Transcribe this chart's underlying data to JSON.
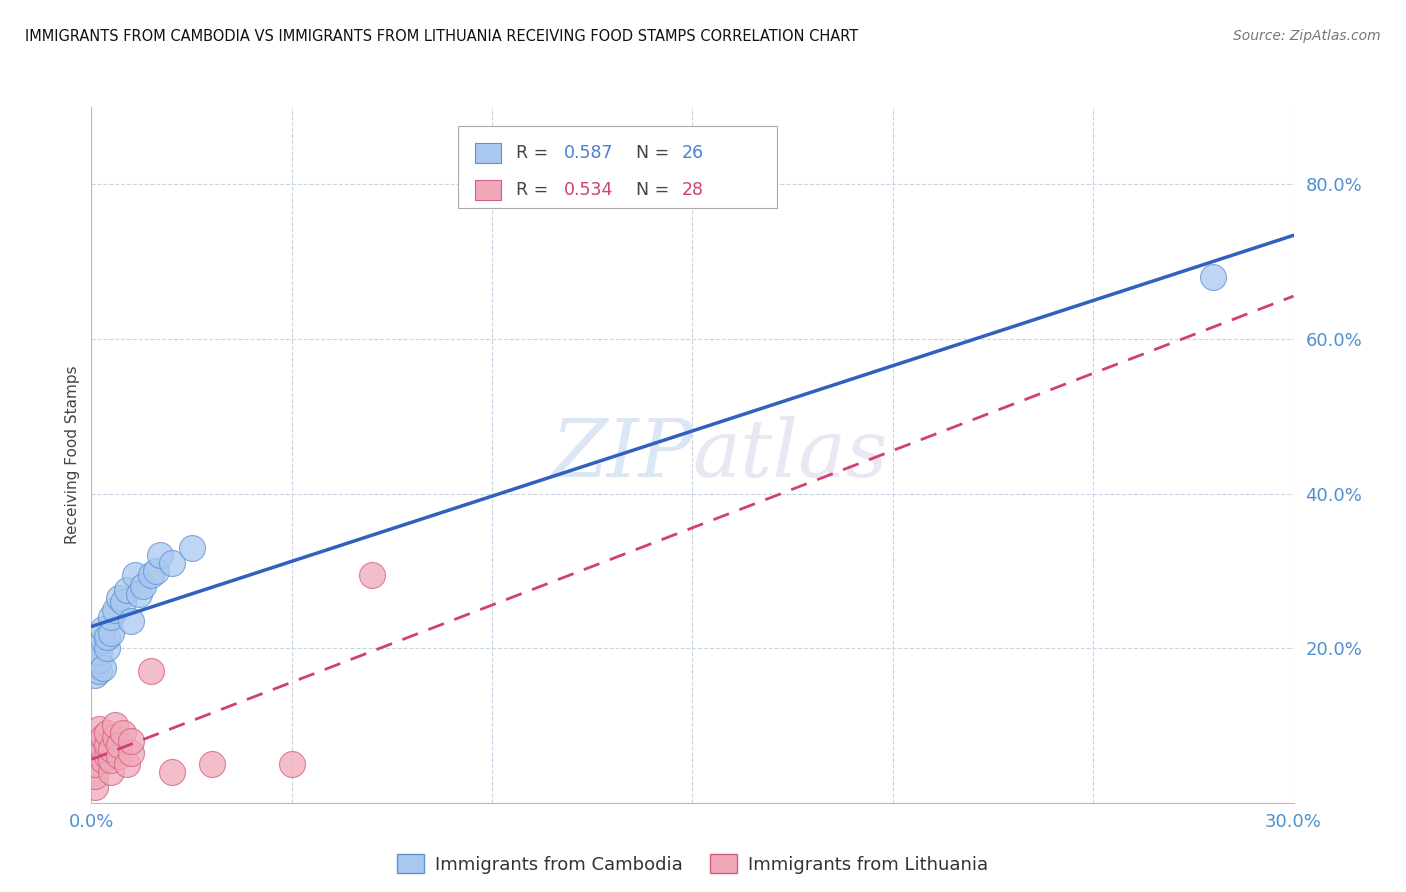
{
  "title": "IMMIGRANTS FROM CAMBODIA VS IMMIGRANTS FROM LITHUANIA RECEIVING FOOD STAMPS CORRELATION CHART",
  "source": "Source: ZipAtlas.com",
  "ylabel": "Receiving Food Stamps",
  "xlim": [
    0.0,
    0.3
  ],
  "ylim": [
    0.0,
    0.9
  ],
  "ytick_values": [
    0.0,
    0.2,
    0.4,
    0.6,
    0.8
  ],
  "xtick_values": [
    0.0,
    0.05,
    0.1,
    0.15,
    0.2,
    0.25,
    0.3
  ],
  "cambodia_fill": "#a8c8f0",
  "cambodia_edge": "#6090d0",
  "lithuania_fill": "#f0a8b8",
  "lithuania_edge": "#d06080",
  "cambodia_line_color": "#3060c0",
  "lithuania_line_color": "#d04070",
  "yaxis_color": "#5090d0",
  "xaxis_color": "#5090d0",
  "legend_r_cam_val": "0.587",
  "legend_n_cam_val": "26",
  "legend_r_lit_val": "0.534",
  "legend_n_lit_val": "28",
  "r_color_cam": "#4a7fd4",
  "n_color_cam": "#4a7fd4",
  "r_color_lit": "#d04070",
  "n_color_lit": "#d04070",
  "cambodia_x": [
    0.001,
    0.001,
    0.002,
    0.002,
    0.002,
    0.003,
    0.003,
    0.003,
    0.004,
    0.004,
    0.005,
    0.005,
    0.006,
    0.007,
    0.008,
    0.009,
    0.01,
    0.011,
    0.012,
    0.013,
    0.015,
    0.016,
    0.017,
    0.02,
    0.025,
    0.28
  ],
  "cambodia_y": [
    0.165,
    0.18,
    0.17,
    0.185,
    0.195,
    0.175,
    0.21,
    0.225,
    0.2,
    0.215,
    0.22,
    0.24,
    0.25,
    0.265,
    0.26,
    0.275,
    0.235,
    0.295,
    0.27,
    0.28,
    0.295,
    0.3,
    0.32,
    0.31,
    0.33,
    0.68
  ],
  "lithuania_x": [
    0.001,
    0.001,
    0.001,
    0.002,
    0.002,
    0.002,
    0.003,
    0.003,
    0.003,
    0.004,
    0.004,
    0.004,
    0.005,
    0.005,
    0.005,
    0.006,
    0.006,
    0.007,
    0.007,
    0.008,
    0.009,
    0.01,
    0.01,
    0.015,
    0.02,
    0.03,
    0.05,
    0.07
  ],
  "lithuania_y": [
    0.02,
    0.035,
    0.05,
    0.065,
    0.08,
    0.095,
    0.055,
    0.07,
    0.085,
    0.06,
    0.075,
    0.09,
    0.04,
    0.055,
    0.07,
    0.085,
    0.1,
    0.06,
    0.075,
    0.09,
    0.05,
    0.065,
    0.08,
    0.17,
    0.04,
    0.05,
    0.05,
    0.295
  ]
}
